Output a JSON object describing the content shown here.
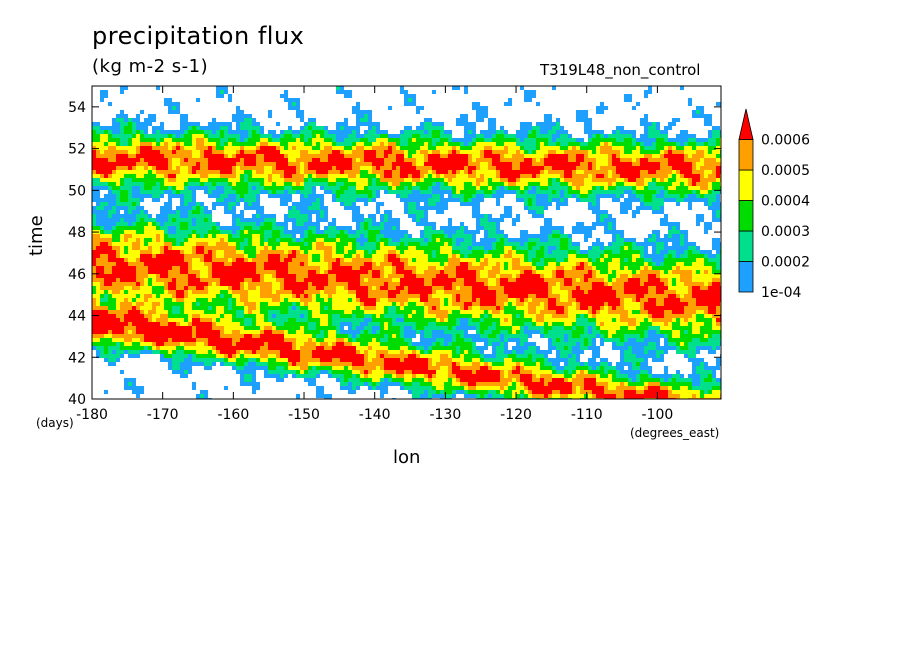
{
  "chart_data": {
    "type": "heatmap",
    "title": "precipitation flux",
    "units_label": "(kg m-2 s-1)",
    "run_label": "T319L48_non_control",
    "xlabel": "lon",
    "ylabel": "time",
    "x_units": "(degrees_east)",
    "y_units": "(days)",
    "xlim": [
      -180,
      -91
    ],
    "ylim": [
      40,
      55
    ],
    "x_ticks": [
      -180,
      -170,
      -160,
      -150,
      -140,
      -130,
      -120,
      -110,
      -100
    ],
    "x_tick_labels": [
      "-180",
      "-170",
      "-160",
      "-150",
      "-140",
      "-130",
      "-120",
      "-110",
      "-100"
    ],
    "y_ticks": [
      40,
      42,
      44,
      46,
      48,
      50,
      52,
      54
    ],
    "y_tick_labels": [
      "40",
      "42",
      "44",
      "46",
      "48",
      "50",
      "52",
      "54"
    ],
    "colorbar": {
      "levels": [
        0.0001,
        0.0002,
        0.0003,
        0.0004,
        0.0005,
        0.0006
      ],
      "labels": [
        "1e-04",
        "0.0002",
        "0.0003",
        "0.0004",
        "0.0005",
        "0.0006"
      ],
      "colors": [
        "#1ea0ff",
        "#00e08c",
        "#00dc00",
        "#ffff00",
        "#ffa000",
        "#ff0000"
      ],
      "extend": "max"
    },
    "bands": [
      {
        "name": "lower",
        "t_at_start": 43.6,
        "slope": -0.045,
        "width": 1.5
      },
      {
        "name": "main",
        "t_at_start": 46.5,
        "slope": -0.02,
        "width": 3.2
      },
      {
        "name": "upper",
        "t_at_start": 51.5,
        "slope": -0.005,
        "width": 2.0
      }
    ],
    "grid": false
  }
}
